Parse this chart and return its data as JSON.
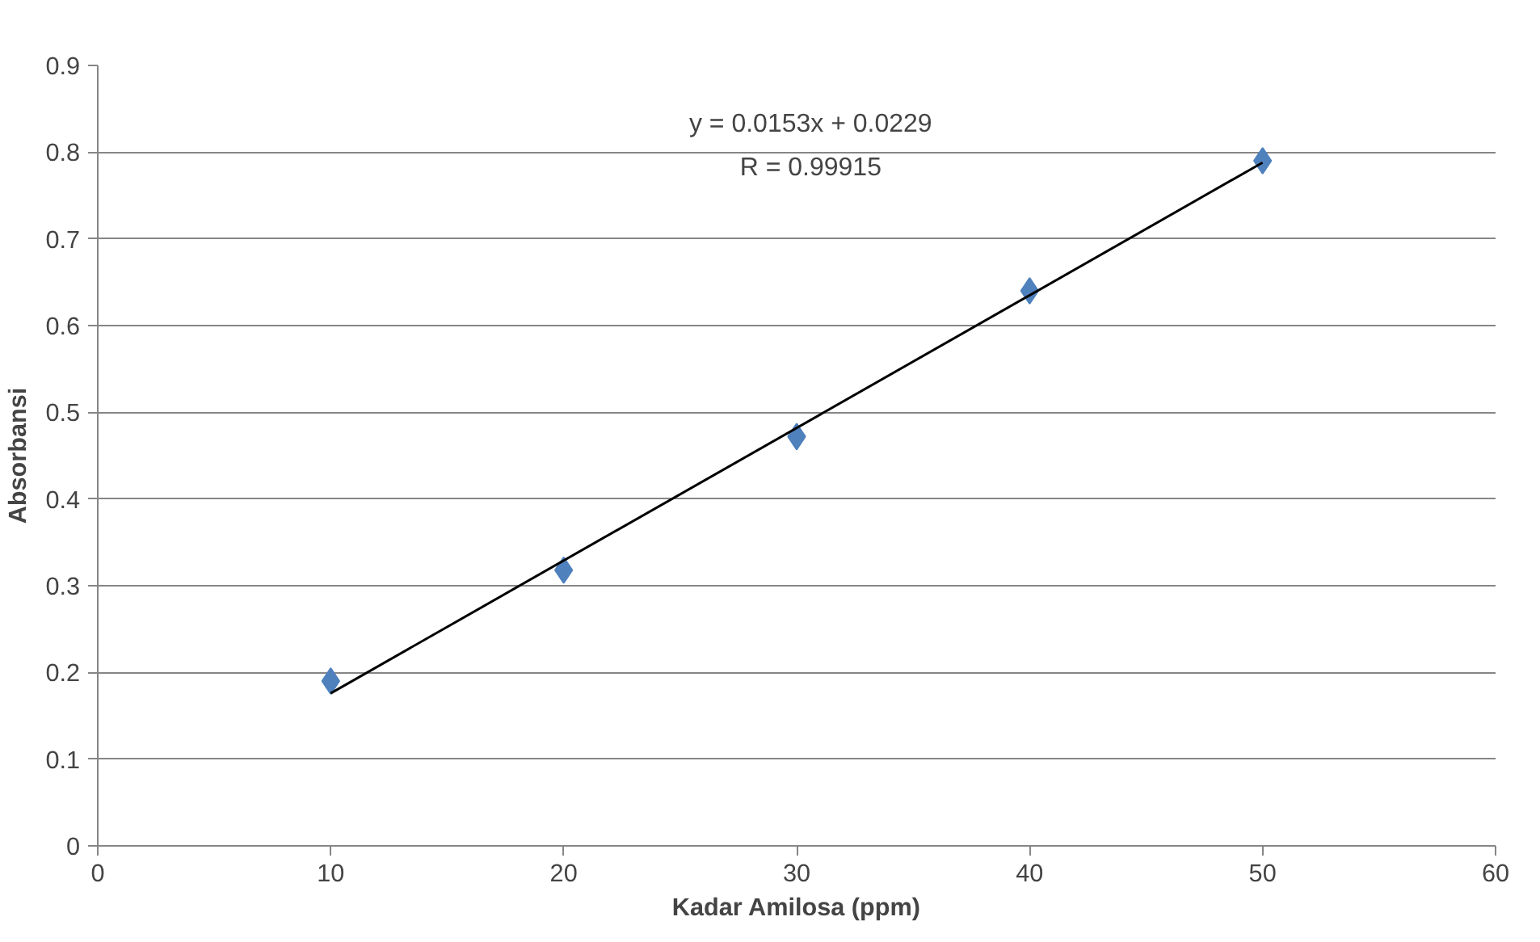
{
  "chart_data": {
    "type": "scatter",
    "xlabel": "Kadar Amilosa (ppm)",
    "ylabel": "Absorbansi",
    "x": [
      10,
      20,
      30,
      40,
      50
    ],
    "series": [
      {
        "color": "#4f81bd",
        "values": [
          0.19,
          0.318,
          0.472,
          0.64,
          0.79
        ],
        "marker": "diamond"
      },
      {
        "type": "line",
        "color": "#000000",
        "x": [
          10,
          50
        ],
        "values": [
          0.176,
          0.788
        ],
        "marker": "none",
        "line_style": "solid"
      }
    ],
    "xlim": [
      0,
      60
    ],
    "xticks": [
      0,
      10,
      20,
      30,
      40,
      50,
      60
    ],
    "ylim": [
      0,
      0.9
    ],
    "yticks": [
      0,
      0.1,
      0.2,
      0.3,
      0.4,
      0.5,
      0.6,
      0.7,
      0.8,
      0.9
    ],
    "grid": "y",
    "annotations": [
      "y = 0.0153x + 0.0229",
      "R = 0.99915"
    ]
  }
}
